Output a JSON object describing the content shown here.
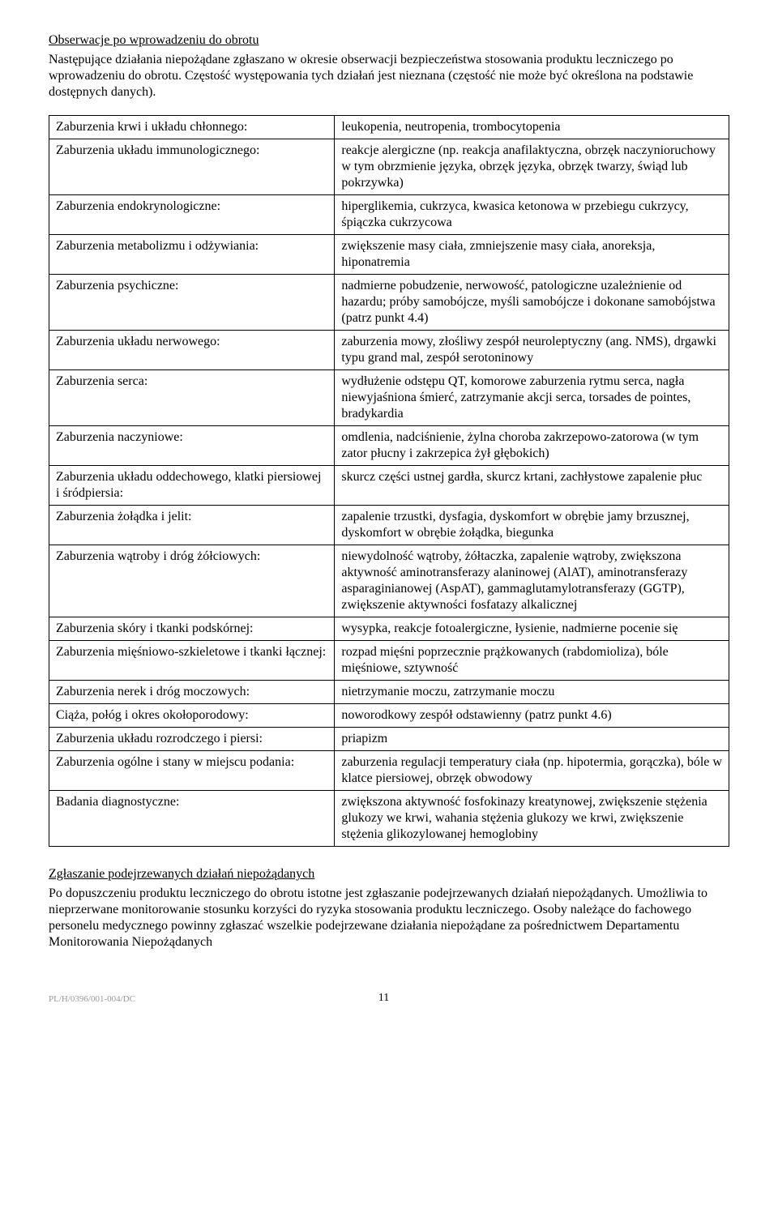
{
  "heading1": "Obserwacje po wprowadzeniu do obrotu",
  "intro1": "Następujące działania niepożądane zgłaszano w okresie obserwacji bezpieczeństwa stosowania produktu leczniczego po wprowadzeniu do obrotu. Częstość występowania tych działań jest nieznana (częstość nie może być określona na podstawie dostępnych danych).",
  "rows": [
    {
      "l": "Zaburzenia krwi i układu chłonnego:",
      "r": "leukopenia, neutropenia, trombocytopenia"
    },
    {
      "l": "Zaburzenia układu immunologicznego:",
      "r": "reakcje alergiczne (np. reakcja anafilaktyczna, obrzęk naczynioruchowy w tym obrzmienie języka, obrzęk języka, obrzęk twarzy, świąd lub pokrzywka)"
    },
    {
      "l": "Zaburzenia endokrynologiczne:",
      "r": "hiperglikemia, cukrzyca, kwasica ketonowa w przebiegu cukrzycy, śpiączka cukrzycowa"
    },
    {
      "l": "Zaburzenia metabolizmu i odżywiania:",
      "r": "zwiększenie masy ciała, zmniejszenie masy ciała, anoreksja, hiponatremia"
    },
    {
      "l": "Zaburzenia psychiczne:",
      "r": "nadmierne pobudzenie, nerwowość, patologiczne uzależnienie od hazardu; próby samobójcze, myśli samobójcze i dokonane samobójstwa (patrz punkt 4.4)"
    },
    {
      "l": "Zaburzenia układu nerwowego:",
      "r": "zaburzenia mowy, złośliwy zespół neuroleptyczny (ang. NMS), drgawki typu grand mal, zespół serotoninowy"
    },
    {
      "l": "Zaburzenia serca:",
      "r": "wydłużenie odstępu QT, komorowe zaburzenia rytmu serca, nagła niewyjaśniona śmierć, zatrzymanie akcji serca, torsades de pointes, bradykardia"
    },
    {
      "l": "Zaburzenia naczyniowe:",
      "r": "omdlenia, nadciśnienie, żylna choroba zakrzepowo-zatorowa (w tym zator płucny i zakrzepica żył głębokich)"
    },
    {
      "l": "Zaburzenia układu oddechowego, klatki piersiowej i śródpiersia:",
      "r": "skurcz części ustnej gardła, skurcz krtani, zachłystowe zapalenie płuc"
    },
    {
      "l": "Zaburzenia żołądka i jelit:",
      "r": "zapalenie trzustki, dysfagia, dyskomfort w obrębie jamy brzusznej, dyskomfort w obrębie żołądka, biegunka"
    },
    {
      "l": "Zaburzenia wątroby i dróg żółciowych:",
      "r": "niewydolność wątroby, żółtaczka, zapalenie wątroby, zwiększona aktywność aminotransferazy alaninowej (AlAT), aminotransferazy asparaginianowej (AspAT), gammaglutamylotransferazy (GGTP), zwiększenie aktywności fosfatazy alkalicznej"
    },
    {
      "l": "Zaburzenia skóry i tkanki podskórnej:",
      "r": "wysypka, reakcje fotoalergiczne, łysienie, nadmierne pocenie się"
    },
    {
      "l": "Zaburzenia mięśniowo-szkieletowe i tkanki łącznej:",
      "r": "rozpad mięśni poprzecznie prążkowanych (rabdomioliza), bóle mięśniowe, sztywność"
    },
    {
      "l": "Zaburzenia nerek i dróg moczowych:",
      "r": "nietrzymanie moczu, zatrzymanie moczu"
    },
    {
      "l": "Ciąża, połóg i okres okołoporodowy:",
      "r": "noworodkowy zespół odstawienny (patrz punkt 4.6)"
    },
    {
      "l": "Zaburzenia układu rozrodczego i piersi:",
      "r": "priapizm"
    },
    {
      "l": "Zaburzenia ogólne i stany w miejscu podania:",
      "r": "zaburzenia regulacji temperatury ciała (np. hipotermia, gorączka), bóle w klatce piersiowej, obrzęk obwodowy"
    },
    {
      "l": "Badania diagnostyczne:",
      "r": "zwiększona aktywność fosfokinazy kreatynowej, zwiększenie stężenia glukozy we krwi, wahania stężenia glukozy we krwi, zwiększenie stężenia glikozylowanej hemoglobiny"
    }
  ],
  "heading2": "Zgłaszanie podejrzewanych działań niepożądanych",
  "body2": "Po dopuszczeniu produktu leczniczego do obrotu istotne jest zgłaszanie podejrzewanych działań niepożądanych. Umożliwia to nieprzerwane monitorowanie stosunku korzyści do ryzyka stosowania produktu leczniczego. Osoby należące do fachowego personelu medycznego powinny zgłaszać wszelkie podejrzewane działania niepożądane za pośrednictwem Departamentu Monitorowania Niepożądanych",
  "docCode": "PL/H/0396/001-004/DC",
  "pageNum": "11"
}
